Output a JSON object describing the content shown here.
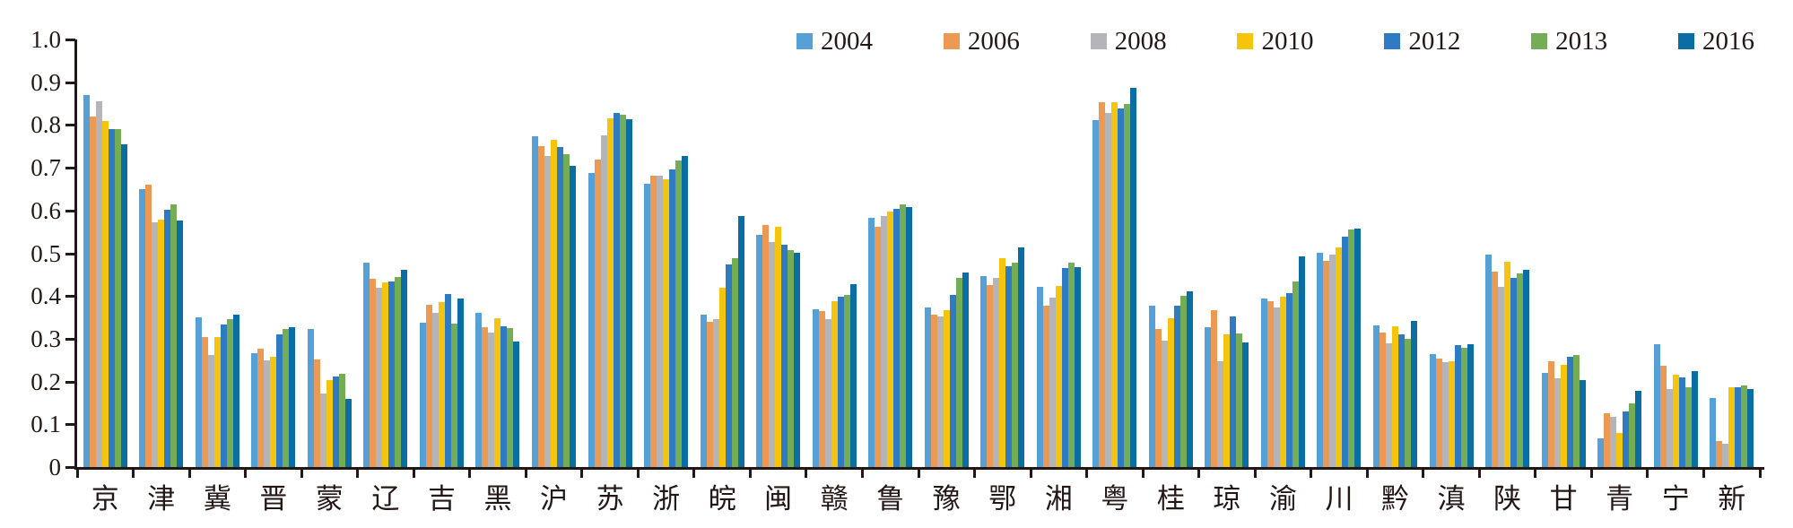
{
  "chart_data": {
    "type": "bar",
    "title": "",
    "xlabel": "",
    "ylabel": "",
    "ylim": [
      0,
      1.0
    ],
    "ytick_step": 0.1,
    "grid": false,
    "legend_position": "top",
    "y_tick_labels": [
      "0",
      "0.1",
      "0.2",
      "0.3",
      "0.4",
      "0.5",
      "0.6",
      "0.7",
      "0.8",
      "0.9",
      "1.0"
    ],
    "categories": [
      "京",
      "津",
      "冀",
      "晋",
      "蒙",
      "辽",
      "吉",
      "黑",
      "沪",
      "苏",
      "浙",
      "皖",
      "闽",
      "赣",
      "鲁",
      "豫",
      "鄂",
      "湘",
      "粤",
      "桂",
      "琼",
      "渝",
      "川",
      "黔",
      "滇",
      "陕",
      "甘",
      "青",
      "宁",
      "新"
    ],
    "series": [
      {
        "name": "2004",
        "color": "#56A0D8",
        "values": [
          0.87,
          0.65,
          0.35,
          0.267,
          0.322,
          0.478,
          0.337,
          0.36,
          0.773,
          0.688,
          0.663,
          0.356,
          0.543,
          0.37,
          0.582,
          0.374,
          0.447,
          0.421,
          0.812,
          0.377,
          0.328,
          0.395,
          0.502,
          0.332,
          0.264,
          0.496,
          0.22,
          0.068,
          0.288,
          0.161
        ]
      },
      {
        "name": "2006",
        "color": "#EC9A53",
        "values": [
          0.82,
          0.66,
          0.303,
          0.276,
          0.251,
          0.44,
          0.379,
          0.328,
          0.75,
          0.72,
          0.682,
          0.34,
          0.566,
          0.365,
          0.562,
          0.357,
          0.425,
          0.377,
          0.853,
          0.323,
          0.367,
          0.388,
          0.482,
          0.314,
          0.254,
          0.457,
          0.248,
          0.126,
          0.236,
          0.061
        ]
      },
      {
        "name": "2008",
        "color": "#B5B5B9",
        "values": [
          0.855,
          0.572,
          0.262,
          0.25,
          0.172,
          0.419,
          0.36,
          0.315,
          0.728,
          0.776,
          0.682,
          0.345,
          0.526,
          0.346,
          0.588,
          0.352,
          0.443,
          0.397,
          0.829,
          0.296,
          0.248,
          0.373,
          0.496,
          0.29,
          0.245,
          0.421,
          0.208,
          0.117,
          0.183,
          0.054
        ]
      },
      {
        "name": "2010",
        "color": "#F5C40D",
        "values": [
          0.81,
          0.578,
          0.305,
          0.257,
          0.204,
          0.431,
          0.386,
          0.348,
          0.766,
          0.815,
          0.673,
          0.419,
          0.562,
          0.387,
          0.598,
          0.367,
          0.489,
          0.424,
          0.853,
          0.347,
          0.311,
          0.398,
          0.514,
          0.329,
          0.248,
          0.48,
          0.24,
          0.08,
          0.216,
          0.187
        ]
      },
      {
        "name": "2012",
        "color": "#2F7BC3",
        "values": [
          0.79,
          0.602,
          0.333,
          0.31,
          0.211,
          0.434,
          0.404,
          0.33,
          0.748,
          0.828,
          0.696,
          0.473,
          0.52,
          0.398,
          0.604,
          0.402,
          0.47,
          0.465,
          0.838,
          0.377,
          0.353,
          0.407,
          0.538,
          0.311,
          0.285,
          0.443,
          0.258,
          0.131,
          0.209,
          0.186
        ]
      },
      {
        "name": "2013",
        "color": "#74AD55",
        "values": [
          0.79,
          0.615,
          0.345,
          0.323,
          0.217,
          0.445,
          0.336,
          0.325,
          0.731,
          0.824,
          0.717,
          0.489,
          0.508,
          0.402,
          0.615,
          0.443,
          0.477,
          0.477,
          0.85,
          0.4,
          0.313,
          0.435,
          0.556,
          0.299,
          0.278,
          0.452,
          0.263,
          0.148,
          0.187,
          0.19
        ]
      },
      {
        "name": "2016",
        "color": "#0A6DA3",
        "values": [
          0.755,
          0.577,
          0.356,
          0.327,
          0.16,
          0.462,
          0.394,
          0.293,
          0.704,
          0.814,
          0.728,
          0.586,
          0.5,
          0.428,
          0.608,
          0.455,
          0.513,
          0.467,
          0.886,
          0.41,
          0.291,
          0.492,
          0.557,
          0.341,
          0.287,
          0.461,
          0.204,
          0.179,
          0.224,
          0.182
        ]
      }
    ]
  }
}
